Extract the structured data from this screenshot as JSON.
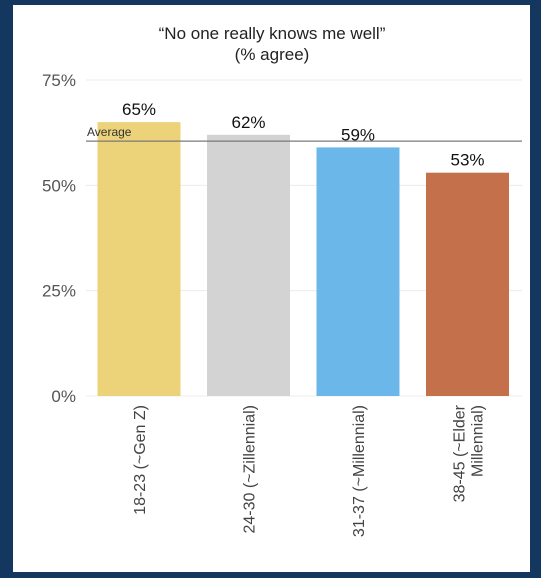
{
  "chart_data": {
    "type": "bar",
    "title_line1": "“No one really knows me well”",
    "title_line2": "(% agree)",
    "categories": [
      "18-23 (~Gen Z)",
      "24-30 (~Zillennial)",
      "31-37 (~Millennial)",
      "38-45 (~Elder Millennial)"
    ],
    "category_lines": [
      [
        "18-23 (~Gen Z)"
      ],
      [
        "24-30 (~Zillennial)"
      ],
      [
        "31-37 (~Millennial)"
      ],
      [
        "38-45 (~Elder",
        "Millennial)"
      ]
    ],
    "values": [
      65,
      62,
      59,
      53
    ],
    "value_labels": [
      "65%",
      "62%",
      "59%",
      "53%"
    ],
    "colors": [
      "#ecd37a",
      "#d3d3d3",
      "#6cb7e9",
      "#c4714b"
    ],
    "ylim": [
      0,
      75
    ],
    "yticks": [
      0,
      25,
      50,
      75
    ],
    "ytick_labels": [
      "0%",
      "25%",
      "50%",
      "75%"
    ],
    "average": 60.5,
    "average_label": "Average",
    "grid": true,
    "xlabel": "",
    "ylabel": ""
  }
}
